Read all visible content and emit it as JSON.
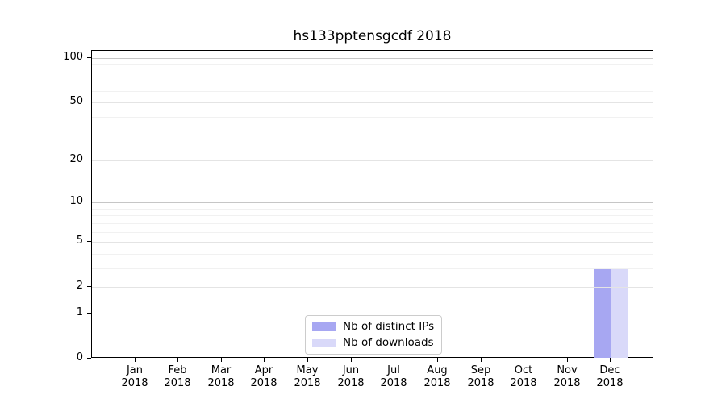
{
  "chart_data": {
    "type": "bar",
    "title": "hs133pptensgcdf 2018",
    "x_tick_months": [
      "Jan",
      "Feb",
      "Mar",
      "Apr",
      "May",
      "Jun",
      "Jul",
      "Aug",
      "Sep",
      "Oct",
      "Nov",
      "Dec"
    ],
    "x_tick_year": "2018",
    "series": [
      {
        "name": "Nb of distinct IPs",
        "color": "#a7a7f2",
        "values": [
          0,
          0,
          0,
          0,
          0,
          0,
          0,
          0,
          0,
          0,
          0,
          3
        ]
      },
      {
        "name": "Nb of downloads",
        "color": "#d9d9f9",
        "values": [
          0,
          0,
          0,
          0,
          0,
          0,
          0,
          0,
          0,
          0,
          0,
          3
        ]
      }
    ],
    "y_scale": "symlog",
    "y_ticks": [
      0,
      1,
      2,
      5,
      10,
      20,
      50,
      100
    ],
    "y_ticks_strong": [
      1,
      10,
      100
    ],
    "y_minor_ticks": [
      3,
      4,
      6,
      7,
      8,
      9,
      30,
      40,
      60,
      70,
      80,
      90
    ],
    "ylim": [
      0,
      112
    ],
    "grid": true,
    "grid_above_bars": true,
    "legend_position": "lower center"
  }
}
